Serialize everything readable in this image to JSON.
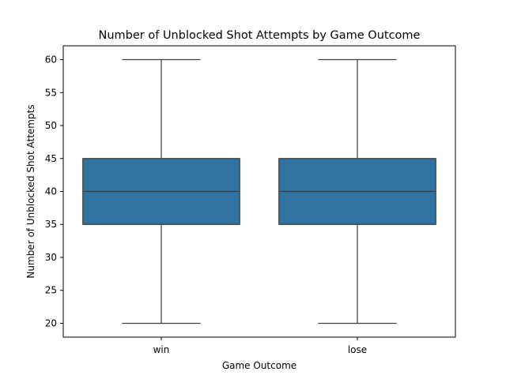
{
  "chart_data": {
    "type": "box",
    "title": "Number of Unblocked Shot Attempts by Game Outcome",
    "xlabel": "Game Outcome",
    "ylabel": "Number of Unblocked Shot Attempts",
    "categories": [
      "win",
      "lose"
    ],
    "boxes": [
      {
        "category": "win",
        "whisker_low": 20,
        "q1": 35,
        "median": 40,
        "q3": 45,
        "whisker_high": 60
      },
      {
        "category": "lose",
        "whisker_low": 20,
        "q1": 35,
        "median": 40,
        "q3": 45,
        "whisker_high": 60
      }
    ],
    "yticks": [
      20,
      25,
      30,
      35,
      40,
      45,
      50,
      55,
      60
    ],
    "ylim": [
      17.9,
      62.1
    ],
    "grid": false,
    "colors": {
      "box_fill": "#3274a1",
      "line": "#3d3d3d",
      "axes": "#000000"
    }
  }
}
